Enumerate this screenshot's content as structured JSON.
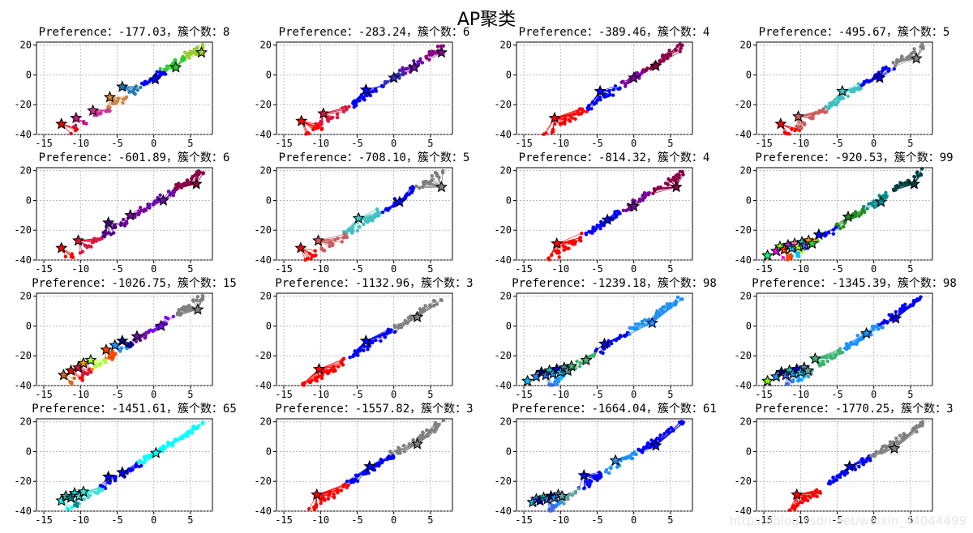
{
  "figure": {
    "title": "AP聚类"
  },
  "watermark": "https://blog.csdn.net/weixin_44044499",
  "chart_data": {
    "type": "scatter",
    "title": "AP聚类",
    "xlim": [
      -16,
      8
    ],
    "ylim": [
      -40,
      22
    ],
    "xticks": [
      -15,
      -10,
      -5,
      0,
      5
    ],
    "yticks": [
      -40,
      -20,
      0,
      20
    ],
    "grid": true,
    "subplots": [
      {
        "title": "Preference：-177.03，簇个数：8",
        "n_clusters": 8,
        "exemplars": [
          [
            -12.6,
            -33
          ],
          [
            -10.6,
            -29
          ],
          [
            -8.3,
            -24
          ],
          [
            -6,
            -15
          ],
          [
            -4.3,
            -8
          ],
          [
            0.2,
            -3
          ],
          [
            3,
            5
          ],
          [
            6.5,
            15
          ]
        ],
        "colors": [
          "#e8000b",
          "#c71585",
          "#cc3399",
          "#cd853f",
          "#1f77b4",
          "#0000ff",
          "#32cd32",
          "#9acd32"
        ]
      },
      {
        "title": "Preference：-283.24，簇个数：6",
        "n_clusters": 6,
        "exemplars": [
          [
            -12.6,
            -31
          ],
          [
            -9.6,
            -26
          ],
          [
            -3.8,
            -10
          ],
          [
            0,
            -2
          ],
          [
            2.8,
            5
          ],
          [
            6.5,
            15
          ]
        ],
        "colors": [
          "#ff0000",
          "#dc143c",
          "#0000ff",
          "#2f2fbf",
          "#6a0dad",
          "#8b008b"
        ]
      },
      {
        "title": "Preference：-389.46，簇个数：4",
        "n_clusters": 4,
        "exemplars": [
          [
            -10.8,
            -29
          ],
          [
            -4.6,
            -11
          ],
          [
            0,
            -2
          ],
          [
            3,
            6
          ]
        ],
        "colors": [
          "#ff0000",
          "#0000ff",
          "#7b00a0",
          "#8b0045"
        ]
      },
      {
        "title": "Preference：-495.67，簇个数：5",
        "n_clusters": 5,
        "exemplars": [
          [
            -12.7,
            -33
          ],
          [
            -10.3,
            -28
          ],
          [
            -4.3,
            -11
          ],
          [
            0.8,
            -2
          ],
          [
            5.8,
            11
          ]
        ],
        "colors": [
          "#ff0000",
          "#cd5c5c",
          "#40c0c0",
          "#0000ff",
          "#808080"
        ]
      },
      {
        "title": "Preference：-601.89，簇个数：6",
        "n_clusters": 6,
        "exemplars": [
          [
            -12.6,
            -32
          ],
          [
            -10.3,
            -27
          ],
          [
            -6.2,
            -15
          ],
          [
            -3.2,
            -10
          ],
          [
            1.3,
            0
          ],
          [
            5.8,
            11
          ]
        ],
        "colors": [
          "#ff0000",
          "#dc143c",
          "#4b0082",
          "#7b00a0",
          "#6a0dad",
          "#8b0045"
        ]
      },
      {
        "title": "Preference：-708.10，簇个数：5",
        "n_clusters": 5,
        "exemplars": [
          [
            -12.7,
            -32
          ],
          [
            -10.3,
            -27
          ],
          [
            -4.8,
            -12
          ],
          [
            0.8,
            -1
          ],
          [
            6.5,
            9
          ]
        ],
        "colors": [
          "#ff0000",
          "#cd5c5c",
          "#40c0c0",
          "#0000ff",
          "#808080"
        ]
      },
      {
        "title": "Preference：-814.32，簇个数：4",
        "n_clusters": 4,
        "exemplars": [
          [
            -10.5,
            -29
          ],
          [
            -3.6,
            -13
          ],
          [
            0,
            -4
          ],
          [
            5.8,
            9
          ]
        ],
        "colors": [
          "#ff0000",
          "#0000ff",
          "#7b00a0",
          "#8b0045"
        ]
      },
      {
        "title": "Preference：-920.53，簇个数：99",
        "n_clusters": 99,
        "exemplars": [
          [
            -14.5,
            -37
          ],
          [
            -13.3,
            -34
          ],
          [
            -12.8,
            -31
          ],
          [
            -12.2,
            -33
          ],
          [
            -11.7,
            -30
          ],
          [
            -11.2,
            -32
          ],
          [
            -10.8,
            -29
          ],
          [
            -10.3,
            -31
          ],
          [
            -9.8,
            -28
          ],
          [
            -9.4,
            -30
          ],
          [
            -8.9,
            -27
          ],
          [
            -8.4,
            -29
          ],
          [
            -7.5,
            -23
          ],
          [
            -3.5,
            -11
          ],
          [
            1,
            -1
          ],
          [
            5.5,
            11
          ]
        ],
        "colors": [
          "#00ff7f",
          "#ff00ff",
          "#7cfc00",
          "#ff4500",
          "#9932cc",
          "#00bfff",
          "#ff69b4",
          "#adff2f",
          "#20b2aa",
          "#4169e1",
          "#ff8c00",
          "#32cd32",
          "#0000ff",
          "#228b22",
          "#008b8b",
          "#004040"
        ]
      },
      {
        "title": "Preference：-1026.75，簇个数：15",
        "n_clusters": 15,
        "exemplars": [
          [
            -12.3,
            -33
          ],
          [
            -11.3,
            -30
          ],
          [
            -10.3,
            -28
          ],
          [
            -9.6,
            -25
          ],
          [
            -8.6,
            -23
          ],
          [
            -6.5,
            -16
          ],
          [
            -5.3,
            -13
          ],
          [
            -4.3,
            -10
          ],
          [
            -2.3,
            -7
          ],
          [
            1,
            0
          ],
          [
            6,
            11
          ]
        ],
        "colors": [
          "#d2691e",
          "#ff0000",
          "#dc143c",
          "#ff8c00",
          "#adff2f",
          "#ff4500",
          "#1e90ff",
          "#000080",
          "#6a0dad",
          "#7b00ff",
          "#808080"
        ]
      },
      {
        "title": "Preference：-1132.96，簇个数：3",
        "n_clusters": 3,
        "exemplars": [
          [
            -10.2,
            -29
          ],
          [
            -3.8,
            -10
          ],
          [
            3.2,
            6
          ]
        ],
        "colors": [
          "#ff0000",
          "#0000ff",
          "#808080"
        ]
      },
      {
        "title": "Preference：-1239.18，簇个数：98",
        "n_clusters": 98,
        "exemplars": [
          [
            -14.5,
            -37
          ],
          [
            -13.3,
            -34
          ],
          [
            -12.6,
            -31
          ],
          [
            -12,
            -33
          ],
          [
            -11.5,
            -30
          ],
          [
            -11,
            -32
          ],
          [
            -10.5,
            -29
          ],
          [
            -10,
            -31
          ],
          [
            -9.5,
            -28
          ],
          [
            -9,
            -30
          ],
          [
            -8.5,
            -27
          ],
          [
            -6.5,
            -23
          ],
          [
            -4,
            -12
          ],
          [
            2.5,
            2
          ]
        ],
        "colors": [
          "#00bfff",
          "#1e90ff",
          "#000080",
          "#4169e1",
          "#00ced1",
          "#1e90ff",
          "#0000cd",
          "#00bfff",
          "#4682b4",
          "#5f9ea0",
          "#3cb371",
          "#3cb371",
          "#0000ff",
          "#1e90ff"
        ]
      },
      {
        "title": "Preference：-1345.39，簇个数：98",
        "n_clusters": 98,
        "exemplars": [
          [
            -14.5,
            -37
          ],
          [
            -13.3,
            -34
          ],
          [
            -12.6,
            -31
          ],
          [
            -12,
            -33
          ],
          [
            -11.5,
            -30
          ],
          [
            -11,
            -32
          ],
          [
            -10.5,
            -29
          ],
          [
            -10,
            -31
          ],
          [
            -9.5,
            -28
          ],
          [
            -9,
            -30
          ],
          [
            -8,
            -22
          ],
          [
            -1,
            -5
          ],
          [
            3,
            5
          ]
        ],
        "colors": [
          "#7cfc00",
          "#1e90ff",
          "#000080",
          "#4169e1",
          "#00ced1",
          "#1e90ff",
          "#0000cd",
          "#00bfff",
          "#4682b4",
          "#5f9ea0",
          "#3cb371",
          "#1e90ff",
          "#0000ff"
        ]
      },
      {
        "title": "Preference：-1451.61，簇个数：65",
        "n_clusters": 65,
        "exemplars": [
          [
            -12.6,
            -33
          ],
          [
            -12,
            -30
          ],
          [
            -11.3,
            -31
          ],
          [
            -10.8,
            -28
          ],
          [
            -10.2,
            -30
          ],
          [
            -9.6,
            -27
          ],
          [
            -6.2,
            -17
          ],
          [
            -4.3,
            -14
          ],
          [
            0.3,
            -1
          ]
        ],
        "colors": [
          "#00ffff",
          "#20b2aa",
          "#008b8b",
          "#00ced1",
          "#48d1cc",
          "#40e0d0",
          "#0000ff",
          "#0000ff",
          "#00ffff"
        ]
      },
      {
        "title": "Preference：-1557.82，簇个数：3",
        "n_clusters": 3,
        "exemplars": [
          [
            -10.5,
            -29
          ],
          [
            -3.3,
            -10
          ],
          [
            3.2,
            5
          ]
        ],
        "colors": [
          "#ff0000",
          "#0000ff",
          "#808080"
        ]
      },
      {
        "title": "Preference：-1664.04，簇个数：61",
        "n_clusters": 61,
        "exemplars": [
          [
            -13.8,
            -34
          ],
          [
            -13.3,
            -32
          ],
          [
            -12.8,
            -33
          ],
          [
            -12.3,
            -31
          ],
          [
            -11.8,
            -32
          ],
          [
            -11.3,
            -30
          ],
          [
            -10.8,
            -31
          ],
          [
            -10.3,
            -29
          ],
          [
            -9.8,
            -30
          ],
          [
            -6.8,
            -16
          ],
          [
            -2.5,
            -6
          ],
          [
            3,
            4
          ]
        ],
        "colors": [
          "#00bfff",
          "#1e90ff",
          "#0000cd",
          "#00ced1",
          "#4169e1",
          "#000080",
          "#1e90ff",
          "#4682b4",
          "#5f9ea0",
          "#0000ff",
          "#1e90ff",
          "#0000ff"
        ]
      },
      {
        "title": "Preference：-1770.25，簇个数：3",
        "n_clusters": 3,
        "exemplars": [
          [
            -10.5,
            -29
          ],
          [
            -3.3,
            -10
          ],
          [
            2.8,
            2
          ]
        ],
        "colors": [
          "#ff0000",
          "#0000ff",
          "#808080"
        ]
      }
    ]
  }
}
